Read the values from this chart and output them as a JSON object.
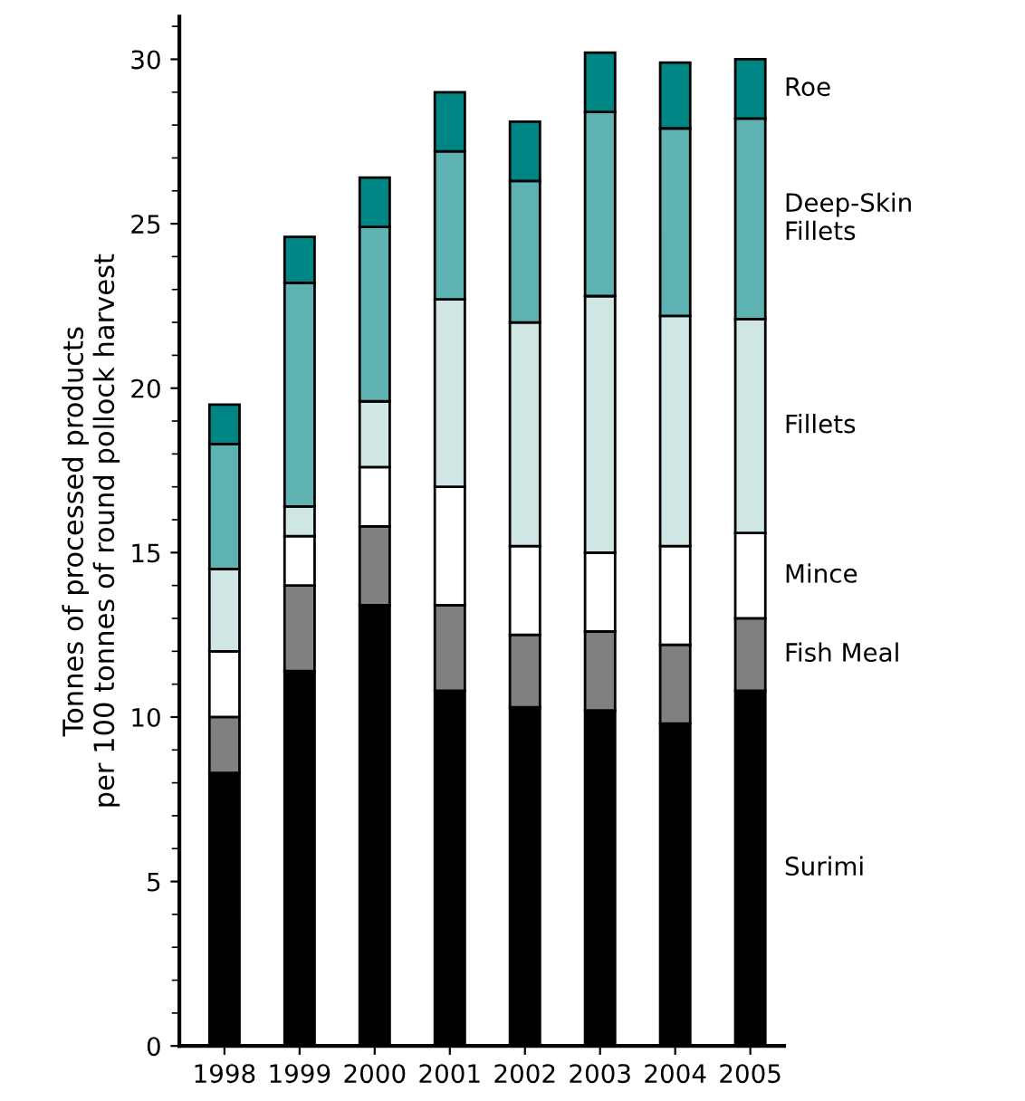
{
  "chart_data": {
    "type": "bar",
    "stacked": true,
    "ylabel": "Tonnes of processed products\nper 100 tonnes of round pollock harvest",
    "categories": [
      "1998",
      "1999",
      "2000",
      "2001",
      "2002",
      "2003",
      "2004",
      "2005"
    ],
    "series": [
      {
        "name": "Surimi",
        "color": "#000000",
        "values": [
          8.3,
          11.4,
          13.4,
          10.8,
          10.3,
          10.2,
          9.8,
          10.8
        ]
      },
      {
        "name": "Fish Meal",
        "color": "#808080",
        "values": [
          1.7,
          2.6,
          2.4,
          2.6,
          2.2,
          2.4,
          2.4,
          2.2
        ]
      },
      {
        "name": "Mince",
        "color": "#ffffff",
        "values": [
          2.0,
          1.5,
          1.8,
          3.6,
          2.7,
          2.4,
          3.0,
          2.6
        ]
      },
      {
        "name": "Fillets",
        "color": "#d0e6e4",
        "values": [
          2.5,
          0.9,
          2.0,
          5.7,
          6.8,
          7.8,
          7.0,
          6.5
        ]
      },
      {
        "name": "Deep-Skin\nFillets",
        "color": "#5fb2b2",
        "values": [
          3.8,
          6.8,
          5.3,
          4.5,
          4.3,
          5.6,
          5.7,
          6.1
        ]
      },
      {
        "name": "Roe",
        "color": "#008585",
        "values": [
          1.2,
          1.4,
          1.5,
          1.8,
          1.8,
          1.8,
          2.0,
          1.8
        ]
      }
    ],
    "ylim": [
      0,
      31.3
    ],
    "yticks": [
      0,
      5,
      10,
      15,
      20,
      25,
      30
    ],
    "grid": false,
    "legend": false
  }
}
